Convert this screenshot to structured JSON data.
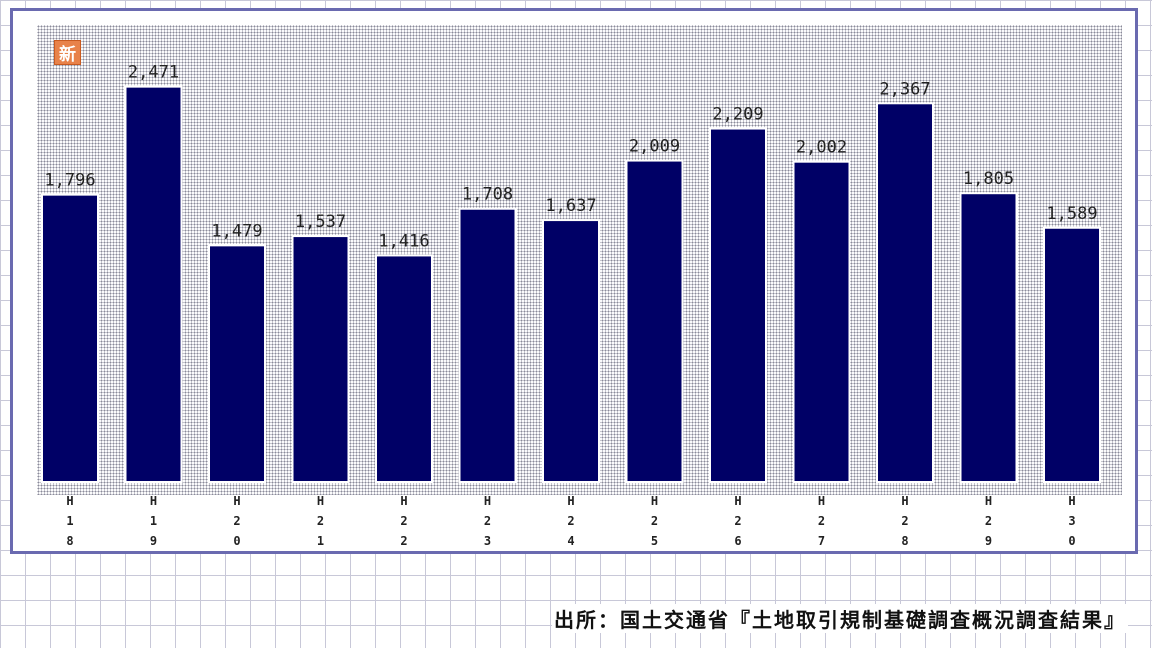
{
  "badge": "新",
  "source": "出所：国土交通省『土地取引規制基礎調査概況調査結果』",
  "colors": {
    "bar": "#000066",
    "frame": "#6a6ab0",
    "badge": "#e8824a"
  },
  "chart_data": {
    "type": "bar",
    "categories": [
      "H18",
      "H19",
      "H20",
      "H21",
      "H22",
      "H23",
      "H24",
      "H25",
      "H26",
      "H27",
      "H28",
      "H29",
      "H30"
    ],
    "values": [
      1796,
      2471,
      1479,
      1537,
      1416,
      1708,
      1637,
      2009,
      2209,
      2002,
      2367,
      1805,
      1589
    ],
    "value_labels": [
      "1,796",
      "2,471",
      "1,479",
      "1,537",
      "1,416",
      "1,708",
      "1,637",
      "2,009",
      "2,209",
      "2,002",
      "2,367",
      "1,805",
      "1,589"
    ],
    "title": "",
    "xlabel": "",
    "ylabel": "",
    "ylim": [
      0,
      2900
    ],
    "grid": false,
    "legend": "none"
  }
}
